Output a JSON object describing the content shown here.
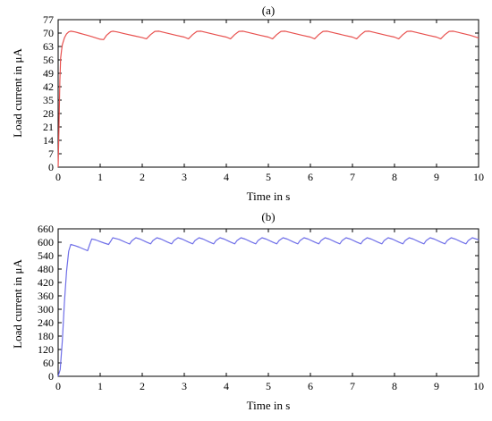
{
  "chart_data": [
    {
      "type": "line",
      "title": "(a)",
      "xlabel": "Time in s",
      "ylabel": "Load current in μA",
      "xlim": [
        0,
        10
      ],
      "ylim": [
        0,
        77
      ],
      "xticks": [
        0,
        1,
        2,
        3,
        4,
        5,
        6,
        7,
        8,
        9,
        10
      ],
      "yticks": [
        0,
        7,
        14,
        21,
        28,
        35,
        42,
        49,
        56,
        63,
        70,
        77
      ],
      "grid": false,
      "color": "#e8514f",
      "series": [
        {
          "x": [
            0,
            0.02,
            0.04,
            0.06,
            0.08,
            0.1,
            0.15,
            0.2,
            0.25,
            0.3,
            0.4,
            0.5,
            0.6,
            0.7,
            0.8,
            0.9,
            1.0,
            1.08,
            1.15,
            1.25,
            1.3,
            1.4,
            1.6,
            1.8,
            2.0,
            2.1,
            2.2,
            2.3,
            2.4,
            2.6,
            2.8,
            3.0,
            3.1,
            3.2,
            3.3,
            3.4,
            3.6,
            3.8,
            4.0,
            4.1,
            4.2,
            4.3,
            4.4,
            4.6,
            4.8,
            5.0,
            5.1,
            5.2,
            5.3,
            5.4,
            5.6,
            5.8,
            6.0,
            6.1,
            6.2,
            6.3,
            6.4,
            6.6,
            6.8,
            7.0,
            7.1,
            7.2,
            7.3,
            7.4,
            7.6,
            7.8,
            8.0,
            8.1,
            8.2,
            8.3,
            8.4,
            8.6,
            8.8,
            9.0,
            9.1,
            9.2,
            9.3,
            9.4,
            9.6,
            9.8,
            10.0
          ],
          "y": [
            0,
            20,
            45,
            57,
            61,
            64,
            67.5,
            69.6,
            70.6,
            71.0,
            70.6,
            70.0,
            69.4,
            68.8,
            68.2,
            67.5,
            66.8,
            66.6,
            68.8,
            70.7,
            71.0,
            70.6,
            69.6,
            68.6,
            67.6,
            67.0,
            69.2,
            70.9,
            71.0,
            69.9,
            68.9,
            67.9,
            67.0,
            69.2,
            70.9,
            71.0,
            69.9,
            68.9,
            67.9,
            67.0,
            69.2,
            70.9,
            71.0,
            69.9,
            68.9,
            67.9,
            67.0,
            69.2,
            70.9,
            71.0,
            69.9,
            68.9,
            67.9,
            67.0,
            69.2,
            70.9,
            71.0,
            69.9,
            68.9,
            67.9,
            67.0,
            69.2,
            70.9,
            71.0,
            69.9,
            68.9,
            67.9,
            67.0,
            69.2,
            70.9,
            71.0,
            69.9,
            68.9,
            67.9,
            67.0,
            69.2,
            70.9,
            71.0,
            69.9,
            68.9,
            67.5
          ]
        }
      ]
    },
    {
      "type": "line",
      "title": "(b)",
      "xlabel": "Time in s",
      "ylabel": "Load current in μA",
      "xlim": [
        0,
        10
      ],
      "ylim": [
        0,
        660
      ],
      "xticks": [
        0,
        1,
        2,
        3,
        4,
        5,
        6,
        7,
        8,
        9,
        10
      ],
      "yticks": [
        0,
        60,
        120,
        180,
        240,
        300,
        360,
        420,
        480,
        540,
        600,
        660
      ],
      "grid": false,
      "color": "#6f6fe8",
      "series": [
        {
          "x": [
            0,
            0.05,
            0.1,
            0.15,
            0.2,
            0.25,
            0.3,
            0.4,
            0.5,
            0.6,
            0.7,
            0.75,
            0.8,
            0.9,
            1.0,
            1.1,
            1.2,
            1.25,
            1.3,
            1.45,
            1.6,
            1.7,
            1.75,
            1.85,
            1.95,
            2.1,
            2.2,
            2.25,
            2.35,
            2.45,
            2.6,
            2.7,
            2.75,
            2.85,
            2.95,
            3.1,
            3.2,
            3.25,
            3.35,
            3.45,
            3.6,
            3.7,
            3.75,
            3.85,
            3.95,
            4.1,
            4.2,
            4.25,
            4.35,
            4.45,
            4.6,
            4.7,
            4.75,
            4.85,
            4.95,
            5.1,
            5.2,
            5.25,
            5.35,
            5.45,
            5.6,
            5.7,
            5.75,
            5.85,
            5.95,
            6.1,
            6.2,
            6.25,
            6.35,
            6.45,
            6.6,
            6.7,
            6.75,
            6.85,
            6.95,
            7.1,
            7.2,
            7.25,
            7.35,
            7.45,
            7.6,
            7.7,
            7.75,
            7.85,
            7.95,
            8.1,
            8.2,
            8.25,
            8.35,
            8.45,
            8.6,
            8.7,
            8.75,
            8.85,
            8.95,
            9.1,
            9.2,
            9.25,
            9.35,
            9.45,
            9.6,
            9.7,
            9.75,
            9.85,
            9.95,
            10.0
          ],
          "y": [
            0,
            30,
            160,
            330,
            470,
            560,
            590,
            585,
            578,
            570,
            562,
            590,
            615,
            610,
            603,
            596,
            590,
            605,
            620,
            613,
            600,
            592,
            606,
            620,
            614,
            601,
            593,
            607,
            620,
            614,
            601,
            593,
            607,
            620,
            614,
            601,
            593,
            607,
            620,
            614,
            601,
            593,
            607,
            620,
            614,
            601,
            593,
            607,
            620,
            614,
            601,
            593,
            607,
            620,
            614,
            601,
            593,
            607,
            620,
            614,
            601,
            593,
            607,
            620,
            614,
            601,
            593,
            607,
            620,
            614,
            601,
            593,
            607,
            620,
            614,
            601,
            593,
            607,
            620,
            614,
            601,
            593,
            607,
            620,
            614,
            601,
            593,
            607,
            620,
            614,
            601,
            593,
            607,
            620,
            614,
            601,
            593,
            607,
            620,
            614,
            601,
            593,
            607,
            620,
            614,
            612
          ]
        }
      ]
    }
  ]
}
